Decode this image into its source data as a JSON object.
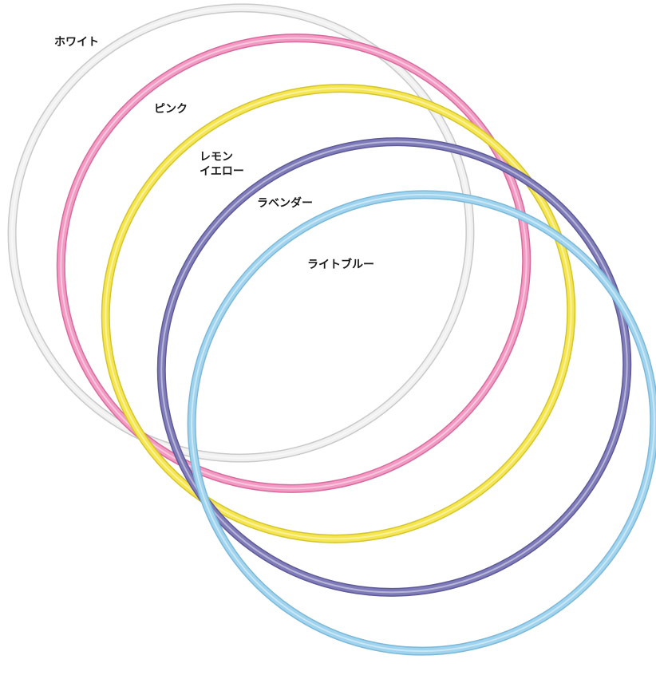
{
  "hoops": [
    {
      "id": "white",
      "label": "ホワイト",
      "color": "#f1f1f1",
      "edge": "#c9c9c9"
    },
    {
      "id": "pink",
      "label": "ピンク",
      "color": "#f29ac3",
      "edge": "#d86b9c"
    },
    {
      "id": "lemon",
      "label": "レモン\nイエロー",
      "color": "#f5e64f",
      "edge": "#d4c52e"
    },
    {
      "id": "lavender",
      "label": "ラベンダー",
      "color": "#7f7bb8",
      "edge": "#5e5a98"
    },
    {
      "id": "lightblue",
      "label": "ライトブルー",
      "color": "#9fd3ee",
      "edge": "#7cb8d8"
    }
  ]
}
